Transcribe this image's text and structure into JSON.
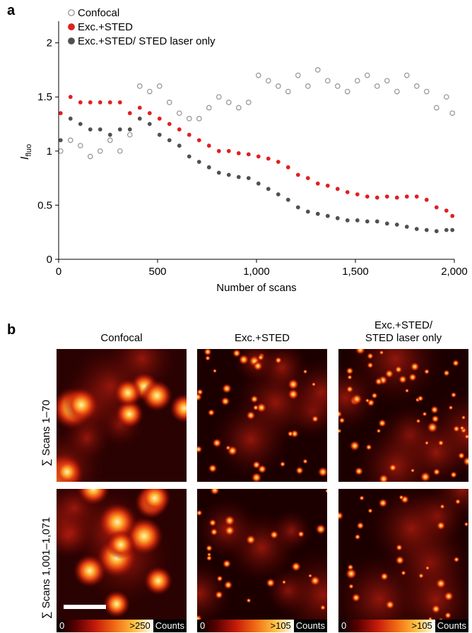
{
  "panel_labels": {
    "a": "a",
    "b": "b"
  },
  "chart_data": {
    "type": "scatter",
    "xlabel": "Number of scans",
    "ylabel_main": "I",
    "ylabel_sub": "fluo",
    "xlim": [
      0,
      2000
    ],
    "ylim": [
      0,
      2.2
    ],
    "x_ticks": [
      0,
      500,
      1000,
      1500,
      2000
    ],
    "x_tick_labels": [
      "0",
      "500",
      "1,000",
      "1,500",
      "2,000"
    ],
    "y_ticks": [
      0,
      0.5,
      1,
      1.5,
      2
    ],
    "y_tick_labels": [
      "0",
      "0.5",
      "1",
      "1.5",
      "2"
    ],
    "grid": false,
    "legend_position": "top-left",
    "series": [
      {
        "name": "Confocal",
        "marker": "open-circle",
        "color": "#9a9a9a",
        "x": [
          10,
          60,
          110,
          160,
          210,
          260,
          310,
          360,
          410,
          460,
          510,
          560,
          610,
          660,
          710,
          760,
          810,
          860,
          910,
          960,
          1010,
          1060,
          1110,
          1160,
          1210,
          1260,
          1310,
          1360,
          1410,
          1460,
          1510,
          1560,
          1610,
          1660,
          1710,
          1760,
          1810,
          1860,
          1910,
          1960,
          1990
        ],
        "y": [
          1.0,
          1.1,
          1.05,
          0.95,
          1.0,
          1.1,
          1.0,
          1.15,
          1.6,
          1.55,
          1.6,
          1.45,
          1.35,
          1.3,
          1.3,
          1.4,
          1.5,
          1.45,
          1.4,
          1.45,
          1.7,
          1.65,
          1.6,
          1.55,
          1.7,
          1.6,
          1.75,
          1.65,
          1.6,
          1.55,
          1.65,
          1.7,
          1.6,
          1.65,
          1.55,
          1.7,
          1.6,
          1.55,
          1.4,
          1.5,
          1.35
        ]
      },
      {
        "name": "Exc.+STED",
        "marker": "filled-circle",
        "color": "#e02020",
        "x": [
          10,
          60,
          110,
          160,
          210,
          260,
          310,
          360,
          410,
          460,
          510,
          560,
          610,
          660,
          710,
          760,
          810,
          860,
          910,
          960,
          1010,
          1060,
          1110,
          1160,
          1210,
          1260,
          1310,
          1360,
          1410,
          1460,
          1510,
          1560,
          1610,
          1660,
          1710,
          1760,
          1810,
          1860,
          1910,
          1960,
          1990
        ],
        "y": [
          1.35,
          1.5,
          1.45,
          1.45,
          1.45,
          1.45,
          1.45,
          1.35,
          1.4,
          1.35,
          1.3,
          1.25,
          1.2,
          1.15,
          1.1,
          1.05,
          1.0,
          1.0,
          0.98,
          0.97,
          0.95,
          0.93,
          0.9,
          0.85,
          0.78,
          0.75,
          0.7,
          0.68,
          0.65,
          0.62,
          0.6,
          0.58,
          0.57,
          0.58,
          0.57,
          0.58,
          0.58,
          0.55,
          0.48,
          0.45,
          0.4
        ]
      },
      {
        "name": "Exc.+STED/ STED laser only",
        "marker": "filled-circle",
        "color": "#505050",
        "x": [
          10,
          60,
          110,
          160,
          210,
          260,
          310,
          360,
          410,
          460,
          510,
          560,
          610,
          660,
          710,
          760,
          810,
          860,
          910,
          960,
          1010,
          1060,
          1110,
          1160,
          1210,
          1260,
          1310,
          1360,
          1410,
          1460,
          1510,
          1560,
          1610,
          1660,
          1710,
          1760,
          1810,
          1860,
          1910,
          1960,
          1990
        ],
        "y": [
          1.1,
          1.3,
          1.25,
          1.2,
          1.2,
          1.15,
          1.2,
          1.2,
          1.3,
          1.25,
          1.15,
          1.1,
          1.05,
          0.95,
          0.9,
          0.85,
          0.8,
          0.78,
          0.76,
          0.75,
          0.7,
          0.65,
          0.6,
          0.55,
          0.48,
          0.44,
          0.42,
          0.4,
          0.38,
          0.36,
          0.36,
          0.35,
          0.35,
          0.33,
          0.32,
          0.3,
          0.28,
          0.27,
          0.26,
          0.27,
          0.27
        ]
      }
    ]
  },
  "image_grid": {
    "columns": [
      "Confocal",
      "Exc.+STED",
      "Exc.+STED/\nSTED laser only"
    ],
    "rows": [
      "∑ Scans 1–70",
      "∑ Scans 1,001–1,071"
    ],
    "colorbars": [
      {
        "min": "0",
        "max": ">250",
        "unit": "Counts"
      },
      {
        "min": "0",
        "max": ">105",
        "unit": "Counts"
      },
      {
        "min": "0",
        "max": ">105",
        "unit": "Counts"
      }
    ],
    "colormap": [
      "#000000",
      "#5a0000",
      "#c41a0a",
      "#f06a14",
      "#ffc040",
      "#ffffff"
    ]
  }
}
